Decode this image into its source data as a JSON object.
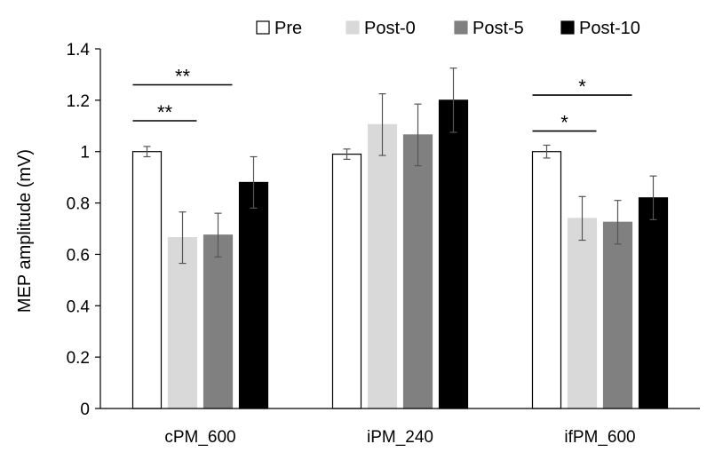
{
  "chart_data": {
    "type": "bar",
    "title": "",
    "xlabel": "",
    "ylabel": "MEP amplitude (mV)",
    "ylim": [
      0,
      1.4
    ],
    "yticks": [
      0,
      0.2,
      0.4,
      0.6,
      0.8,
      1,
      1.2,
      1.4
    ],
    "ytick_labels": [
      "0",
      "0.2",
      "0.4",
      "0.6",
      "0.8",
      "1",
      "1.2",
      "1.4"
    ],
    "categories": [
      "cPM_600",
      "iPM_240",
      "ifPM_600"
    ],
    "series": [
      {
        "name": "Pre",
        "color": "#ffffff",
        "stroke": "#000000",
        "values": [
          1.0,
          0.99,
          1.0
        ],
        "errors": [
          0.02,
          0.02,
          0.025
        ]
      },
      {
        "name": "Post-0",
        "color": "#d9d9d9",
        "stroke": "#d9d9d9",
        "values": [
          0.665,
          1.105,
          0.74
        ],
        "errors": [
          0.1,
          0.12,
          0.085
        ]
      },
      {
        "name": "Post-5",
        "color": "#808080",
        "stroke": "#808080",
        "values": [
          0.675,
          1.065,
          0.725
        ],
        "errors": [
          0.085,
          0.12,
          0.085
        ]
      },
      {
        "name": "Post-10",
        "color": "#000000",
        "stroke": "#000000",
        "values": [
          0.88,
          1.2,
          0.82
        ],
        "errors": [
          0.1,
          0.125,
          0.085
        ]
      }
    ],
    "grid": false,
    "legend_position": "top",
    "significance": [
      {
        "category": 0,
        "from_series": 0,
        "to_series": 1,
        "label": "**",
        "y": 1.12
      },
      {
        "category": 0,
        "from_series": 0,
        "to_series": 2,
        "label": "**",
        "y": 1.26
      },
      {
        "category": 2,
        "from_series": 0,
        "to_series": 1,
        "label": "*",
        "y": 1.08
      },
      {
        "category": 2,
        "from_series": 0,
        "to_series": 2,
        "label": "*",
        "y": 1.22
      }
    ]
  }
}
